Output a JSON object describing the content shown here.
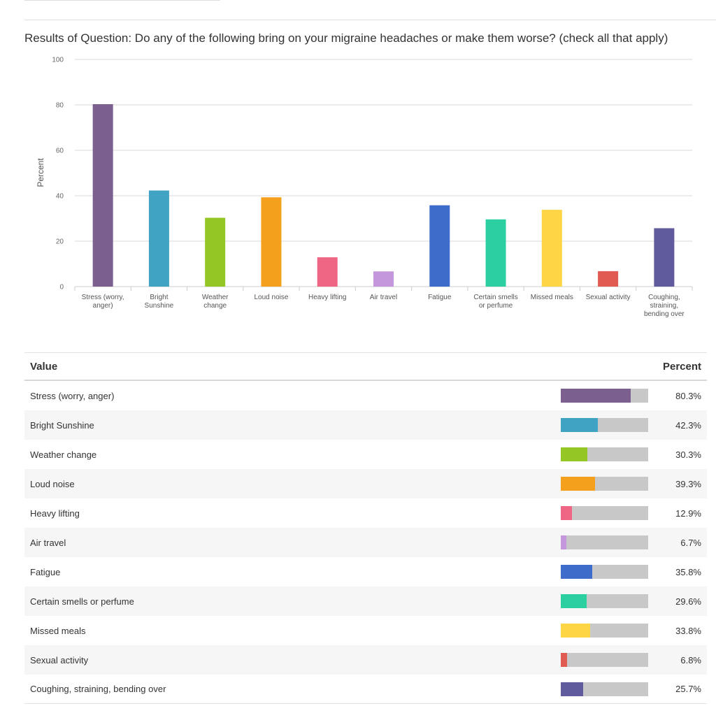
{
  "chart_data": {
    "type": "bar",
    "title": "Results of Question: Do any of the following bring on your migraine headaches or make them worse? (check all that apply)",
    "xlabel": "",
    "ylabel": "Percent",
    "ylim": [
      0,
      100
    ],
    "yticks": [
      "0",
      "20",
      "40",
      "60",
      "80",
      "100"
    ],
    "grid": true,
    "categories": [
      [
        "Stress (worry,",
        "anger)"
      ],
      [
        "Bright",
        "Sunshine"
      ],
      [
        "Weather",
        "change"
      ],
      [
        "Loud noise"
      ],
      [
        "Heavy lifting"
      ],
      [
        "Air travel"
      ],
      [
        "Fatigue"
      ],
      [
        "Certain smells",
        "or perfume"
      ],
      [
        "Missed meals"
      ],
      [
        "Sexual activity"
      ],
      [
        "Coughing,",
        "straining,",
        "bending over"
      ]
    ],
    "values": [
      80.3,
      42.3,
      30.3,
      39.3,
      12.9,
      6.7,
      35.8,
      29.6,
      33.8,
      6.8,
      25.7
    ],
    "colors": [
      "#7b5f8f",
      "#40a3c4",
      "#94c626",
      "#f5a01c",
      "#ef6584",
      "#c496dc",
      "#3e6ccb",
      "#2ccfa0",
      "#fdd545",
      "#e05b52",
      "#5f5b9d"
    ]
  },
  "table": {
    "header_value": "Value",
    "header_percent": "Percent",
    "rows": [
      {
        "label": "Stress (worry, anger)",
        "percent": "80.3%"
      },
      {
        "label": "Bright Sunshine",
        "percent": "42.3%"
      },
      {
        "label": "Weather change",
        "percent": "30.3%"
      },
      {
        "label": "Loud noise",
        "percent": "39.3%"
      },
      {
        "label": "Heavy lifting",
        "percent": "12.9%"
      },
      {
        "label": "Air travel",
        "percent": "6.7%"
      },
      {
        "label": "Fatigue",
        "percent": "35.8%"
      },
      {
        "label": "Certain smells or perfume",
        "percent": "29.6%"
      },
      {
        "label": "Missed meals",
        "percent": "33.8%"
      },
      {
        "label": "Sexual activity",
        "percent": "6.8%"
      },
      {
        "label": "Coughing, straining, bending over",
        "percent": "25.7%"
      }
    ]
  }
}
